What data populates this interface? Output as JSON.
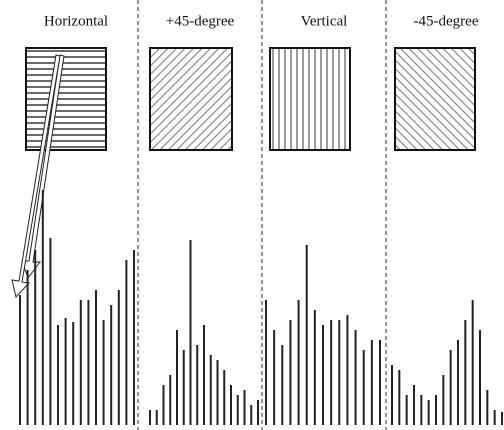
{
  "chart_data": [
    {
      "type": "bar",
      "title": "Horizontal",
      "color": "#222",
      "ylim": [
        0,
        250
      ],
      "values": [
        130,
        155,
        175,
        235,
        187,
        100,
        107,
        103,
        125,
        125,
        135,
        105,
        120,
        135,
        165,
        175
      ]
    },
    {
      "type": "bar",
      "title": "+45-degree",
      "color": "#222",
      "ylim": [
        0,
        250
      ],
      "values": [
        15,
        15,
        40,
        50,
        95,
        75,
        185,
        80,
        100,
        70,
        65,
        55,
        40,
        30,
        35,
        20,
        25
      ]
    },
    {
      "type": "bar",
      "title": "Vertical",
      "color": "#222",
      "ylim": [
        0,
        250
      ],
      "values": [
        125,
        95,
        80,
        105,
        125,
        180,
        115,
        100,
        105,
        105,
        110,
        95,
        75,
        85,
        85
      ]
    },
    {
      "type": "bar",
      "title": "-45-degree",
      "color": "#222",
      "ylim": [
        0,
        250
      ],
      "values": [
        60,
        55,
        30,
        40,
        30,
        25,
        30,
        50,
        75,
        85,
        105,
        125,
        95,
        35,
        15,
        13
      ]
    }
  ]
}
